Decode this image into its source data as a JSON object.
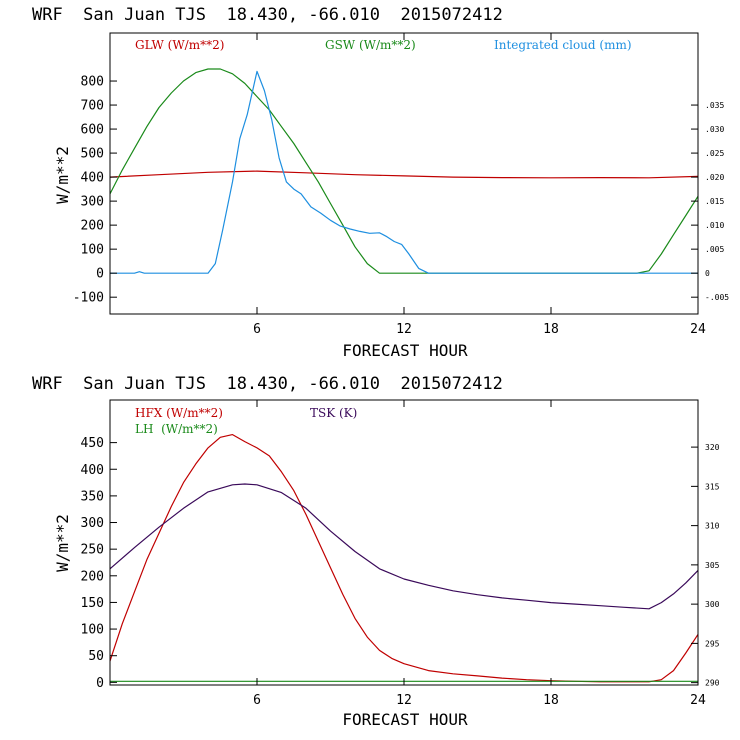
{
  "charts": [
    {
      "title": "WRF  San Juan TJS  18.430, -66.010  2015072412",
      "xlabel": "FORECAST HOUR",
      "ylabel": "W/m**2",
      "legend": [
        {
          "label": "GLW (W/m**2)",
          "color": "#c00000"
        },
        {
          "label": "GSW (W/m**2)",
          "color": "#1a8a1a"
        },
        {
          "label": "Integrated cloud (mm)",
          "color": "#1e8fe0"
        }
      ]
    },
    {
      "title": "WRF  San Juan TJS  18.430, -66.010  2015072412",
      "xlabel": "FORECAST HOUR",
      "ylabel": "W/m**2",
      "legend": [
        {
          "label": "HFX (W/m**2)",
          "color": "#c00000"
        },
        {
          "label": "LH  (W/m**2)",
          "color": "#1a8a1a"
        },
        {
          "label": "TSK (K)",
          "color": "#3a0a5a"
        }
      ]
    }
  ],
  "chart_data": [
    {
      "type": "line",
      "xlim": [
        0,
        24
      ],
      "ylim": [
        -170,
        1000
      ],
      "y2lim": [
        -0.0085,
        0.05
      ],
      "x_ticks": [
        6,
        12,
        18,
        24
      ],
      "x_tick_labels": [
        "6",
        "12",
        "18",
        "24"
      ],
      "y_ticks": [
        -100,
        0,
        100,
        200,
        300,
        400,
        500,
        600,
        700,
        800
      ],
      "y_tick_labels": [
        "-100",
        "0",
        "100",
        "200",
        "300",
        "400",
        "500",
        "600",
        "700",
        "800"
      ],
      "y2_ticks": [
        -0.005,
        0,
        0.005,
        0.01,
        0.015,
        0.02,
        0.025,
        0.03,
        0.035
      ],
      "y2_tick_labels": [
        "-.005",
        "0",
        ".005",
        ".010",
        ".015",
        ".020",
        ".025",
        ".030",
        ".035"
      ],
      "series": [
        {
          "name": "GLW (W/m**2)",
          "color": "#c00000",
          "axis": "left",
          "x": [
            0,
            2,
            4,
            6,
            8,
            10,
            12,
            14,
            16,
            18,
            20,
            22,
            24
          ],
          "y": [
            400,
            410,
            420,
            425,
            418,
            410,
            405,
            400,
            398,
            397,
            398,
            397,
            403
          ]
        },
        {
          "name": "GSW (W/m**2)",
          "color": "#1a8a1a",
          "axis": "left",
          "x": [
            0,
            0.5,
            1,
            1.5,
            2,
            2.5,
            3,
            3.5,
            4,
            4.5,
            5,
            5.5,
            6,
            6.5,
            7,
            7.5,
            8,
            8.5,
            9,
            9.5,
            10,
            10.5,
            11,
            12,
            14,
            16,
            18,
            20,
            21.5,
            22,
            22.5,
            23,
            23.5,
            24
          ],
          "y": [
            330,
            430,
            520,
            610,
            690,
            750,
            800,
            835,
            850,
            850,
            830,
            790,
            735,
            680,
            610,
            540,
            460,
            380,
            290,
            200,
            110,
            40,
            0,
            0,
            0,
            0,
            0,
            0,
            0,
            10,
            80,
            160,
            240,
            320
          ]
        },
        {
          "name": "Integrated cloud (mm)",
          "color": "#1e8fe0",
          "axis": "right",
          "x": [
            0,
            1,
            1.2,
            1.4,
            2,
            3,
            4,
            4.3,
            4.6,
            5,
            5.3,
            5.6,
            6,
            6.3,
            6.6,
            6.9,
            7.2,
            7.5,
            7.8,
            8.2,
            8.6,
            9,
            9.4,
            9.8,
            10.2,
            10.6,
            11,
            11.3,
            11.6,
            11.9,
            12.2,
            12.6,
            13,
            14,
            16,
            18,
            20,
            22,
            24
          ],
          "y": [
            0,
            0,
            0.0003,
            0,
            0,
            0,
            0,
            0.002,
            0.009,
            0.019,
            0.028,
            0.033,
            0.042,
            0.038,
            0.032,
            0.024,
            0.019,
            0.0175,
            0.0165,
            0.0138,
            0.0125,
            0.011,
            0.0098,
            0.0092,
            0.0087,
            0.0083,
            0.0084,
            0.0076,
            0.0066,
            0.006,
            0.004,
            0.001,
            0,
            0,
            0,
            0,
            0,
            0,
            0
          ]
        }
      ]
    },
    {
      "type": "line",
      "xlim": [
        0,
        24
      ],
      "ylim": [
        -5,
        530
      ],
      "y2lim": [
        289.7,
        326
      ],
      "x_ticks": [
        6,
        12,
        18,
        24
      ],
      "x_tick_labels": [
        "6",
        "12",
        "18",
        "24"
      ],
      "y_ticks": [
        0,
        50,
        100,
        150,
        200,
        250,
        300,
        350,
        400,
        450
      ],
      "y_tick_labels": [
        "0",
        "50",
        "100",
        "150",
        "200",
        "250",
        "300",
        "350",
        "400",
        "450"
      ],
      "y2_ticks": [
        290,
        295,
        300,
        305,
        310,
        315,
        320
      ],
      "y2_tick_labels": [
        "290",
        "295",
        "300",
        "305",
        "310",
        "315",
        "320"
      ],
      "series": [
        {
          "name": "HFX (W/m**2)",
          "color": "#c00000",
          "axis": "left",
          "x": [
            0,
            0.5,
            1,
            1.5,
            2,
            2.5,
            3,
            3.5,
            4,
            4.5,
            5,
            5.5,
            6,
            6.5,
            7,
            7.5,
            8,
            8.5,
            9,
            9.5,
            10,
            10.5,
            11,
            11.5,
            12,
            13,
            14,
            15,
            16,
            17,
            18,
            19,
            20,
            21,
            22,
            22.5,
            23,
            23.5,
            24
          ],
          "y": [
            40,
            110,
            170,
            230,
            280,
            330,
            375,
            410,
            440,
            460,
            465,
            452,
            440,
            425,
            395,
            360,
            315,
            265,
            215,
            165,
            120,
            85,
            60,
            45,
            35,
            22,
            16,
            12,
            8,
            5,
            3,
            2,
            1,
            1,
            1,
            5,
            22,
            55,
            90
          ]
        },
        {
          "name": "LH  (W/m**2)",
          "color": "#1a8a1a",
          "axis": "left",
          "x": [
            0,
            6,
            12,
            18,
            24
          ],
          "y": [
            2,
            2,
            2,
            2,
            2
          ]
        },
        {
          "name": "TSK (K)",
          "color": "#3a0a5a",
          "axis": "right",
          "x": [
            0,
            1,
            2,
            3,
            4,
            5,
            5.5,
            6,
            7,
            8,
            9,
            10,
            11,
            12,
            13,
            14,
            15,
            16,
            17,
            18,
            19,
            20,
            21,
            22,
            22.5,
            23,
            23.5,
            24
          ],
          "y": [
            304.5,
            307.2,
            309.8,
            312.2,
            314.3,
            315.2,
            315.3,
            315.2,
            314.2,
            312.2,
            309.3,
            306.7,
            304.5,
            303.2,
            302.4,
            301.7,
            301.2,
            300.8,
            300.5,
            300.2,
            300.0,
            299.8,
            299.6,
            299.4,
            300.2,
            301.3,
            302.7,
            304.3
          ]
        }
      ]
    }
  ]
}
